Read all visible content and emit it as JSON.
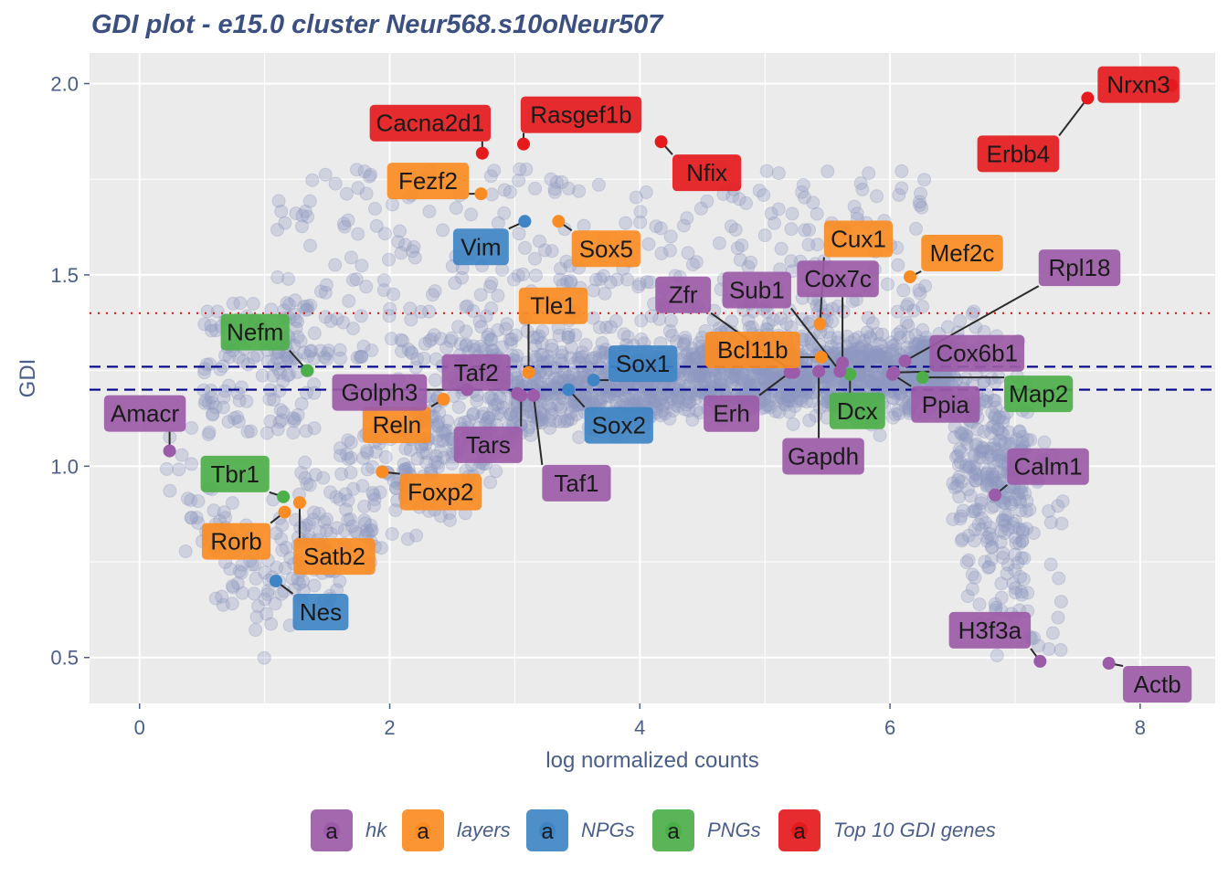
{
  "chart_data": {
    "type": "scatter",
    "title": "GDI plot - e15.0 cluster Neur568.s10oNeur507",
    "xlabel": "log normalized counts",
    "ylabel": "GDI",
    "xlim": [
      -0.4,
      8.6
    ],
    "ylim": [
      0.38,
      2.08
    ],
    "x_ticks": [
      0,
      2,
      4,
      6,
      8
    ],
    "y_ticks": [
      0.5,
      1.0,
      1.5,
      2.0
    ],
    "x_tick_labels": [
      "0",
      "2",
      "4",
      "6",
      "8"
    ],
    "y_tick_labels": [
      "0.5",
      "1.0",
      "1.5",
      "2.0"
    ],
    "grid": true,
    "legend_position": "bottom",
    "reference_lines": [
      {
        "y": 1.4,
        "style": "dotted",
        "color": "#e31a1c"
      },
      {
        "y": 1.26,
        "style": "dashed",
        "color": "#00008b"
      },
      {
        "y": 1.2,
        "style": "dashed",
        "color": "#00008b"
      }
    ],
    "background_points": {
      "color": "#8e99bf",
      "opacity": 0.3,
      "description_count": 2800
    },
    "categories": [
      {
        "name": "hk",
        "color": "#9c5ba8"
      },
      {
        "name": "layers",
        "color": "#fb8c23"
      },
      {
        "name": "NPGs",
        "color": "#3f84c4"
      },
      {
        "name": "PNGs",
        "color": "#4daf4a"
      },
      {
        "name": "Top 10 GDI genes",
        "color": "#e41a1c"
      }
    ],
    "legend_key_glyph": "a",
    "genes": [
      {
        "gene": "Nrxn3",
        "x": 8.25,
        "y": 1.995,
        "cat": "Top 10 GDI genes"
      },
      {
        "gene": "Erbb4",
        "x": 7.58,
        "y": 1.962,
        "cat": "Top 10 GDI genes"
      },
      {
        "gene": "Cacna2d1",
        "x": 2.74,
        "y": 1.818,
        "cat": "Top 10 GDI genes"
      },
      {
        "gene": "Rasgef1b",
        "x": 3.07,
        "y": 1.842,
        "cat": "Top 10 GDI genes"
      },
      {
        "gene": "Nfix",
        "x": 4.17,
        "y": 1.848,
        "cat": "Top 10 GDI genes"
      },
      {
        "gene": "Fezf2",
        "x": 2.73,
        "y": 1.712,
        "cat": "layers"
      },
      {
        "gene": "Sox5",
        "x": 3.35,
        "y": 1.64,
        "cat": "layers"
      },
      {
        "gene": "Mef2c",
        "x": 6.16,
        "y": 1.495,
        "cat": "layers"
      },
      {
        "gene": "Cux1",
        "x": 5.44,
        "y": 1.372,
        "cat": "layers"
      },
      {
        "gene": "Bcl11b",
        "x": 5.45,
        "y": 1.285,
        "cat": "layers"
      },
      {
        "gene": "Tle1",
        "x": 3.11,
        "y": 1.245,
        "cat": "layers"
      },
      {
        "gene": "Reln",
        "x": 2.43,
        "y": 1.175,
        "cat": "layers"
      },
      {
        "gene": "Foxp2",
        "x": 1.94,
        "y": 0.985,
        "cat": "layers"
      },
      {
        "gene": "Satb2",
        "x": 1.28,
        "y": 0.905,
        "cat": "layers"
      },
      {
        "gene": "Rorb",
        "x": 1.16,
        "y": 0.88,
        "cat": "layers"
      },
      {
        "gene": "Vim",
        "x": 3.08,
        "y": 1.64,
        "cat": "NPGs"
      },
      {
        "gene": "Sox1",
        "x": 3.63,
        "y": 1.225,
        "cat": "NPGs"
      },
      {
        "gene": "Sox2",
        "x": 3.43,
        "y": 1.2,
        "cat": "NPGs"
      },
      {
        "gene": "Nes",
        "x": 1.09,
        "y": 0.7,
        "cat": "NPGs"
      },
      {
        "gene": "Nefm",
        "x": 1.34,
        "y": 1.25,
        "cat": "PNGs"
      },
      {
        "gene": "Dcx",
        "x": 5.68,
        "y": 1.24,
        "cat": "PNGs"
      },
      {
        "gene": "Map2",
        "x": 6.26,
        "y": 1.232,
        "cat": "PNGs"
      },
      {
        "gene": "Tbr1",
        "x": 1.15,
        "y": 0.92,
        "cat": "PNGs"
      },
      {
        "gene": "Amacr",
        "x": 0.24,
        "y": 1.04,
        "cat": "hk"
      },
      {
        "gene": "Golph3",
        "x": 2.62,
        "y": 1.2,
        "cat": "hk"
      },
      {
        "gene": "Taf2",
        "x": 3.02,
        "y": 1.19,
        "cat": "hk"
      },
      {
        "gene": "Tars",
        "x": 3.05,
        "y": 1.185,
        "cat": "hk"
      },
      {
        "gene": "Taf1",
        "x": 3.15,
        "y": 1.185,
        "cat": "hk"
      },
      {
        "gene": "Zfr",
        "x": 5.23,
        "y": 1.245,
        "cat": "hk"
      },
      {
        "gene": "Erh",
        "x": 5.2,
        "y": 1.245,
        "cat": "hk"
      },
      {
        "gene": "Sub1",
        "x": 5.6,
        "y": 1.248,
        "cat": "hk"
      },
      {
        "gene": "Cox7c",
        "x": 5.62,
        "y": 1.27,
        "cat": "hk"
      },
      {
        "gene": "Gapdh",
        "x": 5.43,
        "y": 1.248,
        "cat": "hk"
      },
      {
        "gene": "Rpl18",
        "x": 6.12,
        "y": 1.275,
        "cat": "hk"
      },
      {
        "gene": "Cox6b1",
        "x": 6.03,
        "y": 1.245,
        "cat": "hk"
      },
      {
        "gene": "Ppia",
        "x": 6.02,
        "y": 1.24,
        "cat": "hk"
      },
      {
        "gene": "Calm1",
        "x": 6.84,
        "y": 0.925,
        "cat": "hk"
      },
      {
        "gene": "H3f3a",
        "x": 7.2,
        "y": 0.49,
        "cat": "hk"
      },
      {
        "gene": "Actb",
        "x": 7.75,
        "y": 0.485,
        "cat": "hk"
      }
    ],
    "label_offsets_note": "label boxes placed beside points with connector lines"
  }
}
